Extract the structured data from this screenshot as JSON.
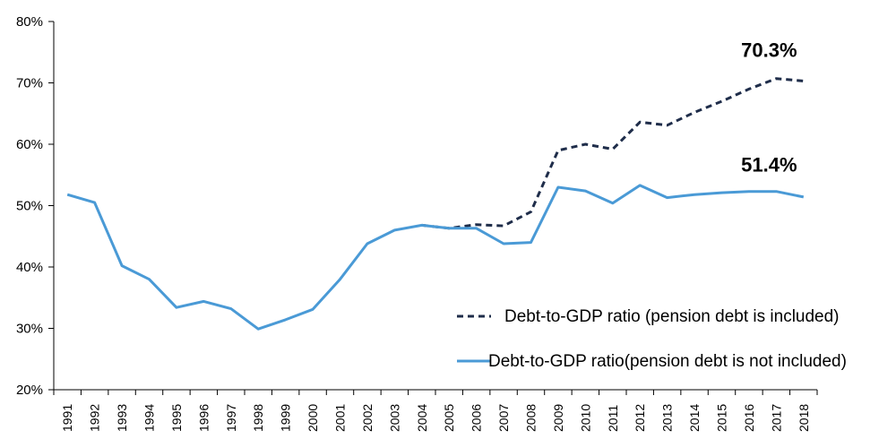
{
  "chart_data": {
    "type": "line",
    "title": "",
    "xlabel": "",
    "ylabel": "",
    "ylim": [
      0.2,
      0.8
    ],
    "y_ticks": [
      "20%",
      "30%",
      "40%",
      "50%",
      "60%",
      "70%",
      "80%"
    ],
    "y_tick_values": [
      0.2,
      0.3,
      0.4,
      0.5,
      0.6,
      0.7,
      0.8
    ],
    "grid": false,
    "legend_position": "bottom-right",
    "categories": [
      "1991",
      "1992",
      "1993",
      "1994",
      "1995",
      "1996",
      "1997",
      "1998",
      "1999",
      "2000",
      "2001",
      "2002",
      "2003",
      "2004",
      "2005",
      "2006",
      "2007",
      "2008",
      "2009",
      "2010",
      "2011",
      "2012",
      "2013",
      "2014",
      "2015",
      "2016",
      "2017",
      "2018"
    ],
    "series": [
      {
        "name": "Debt-to-GDP ratio (pension debt is included)",
        "style": "dashed",
        "color": "#1f2d4a",
        "values": [
          null,
          null,
          null,
          null,
          null,
          null,
          null,
          null,
          null,
          null,
          null,
          null,
          null,
          0.468,
          0.463,
          0.469,
          0.467,
          0.49,
          0.59,
          0.6,
          0.592,
          0.636,
          0.631,
          0.652,
          0.67,
          0.69,
          0.707,
          0.703
        ]
      },
      {
        "name": "Debt-to-GDP ratio(pension debt is not included)",
        "style": "solid",
        "color": "#4a9ad6",
        "values": [
          0.518,
          0.505,
          0.402,
          0.38,
          0.334,
          0.344,
          0.332,
          0.299,
          0.314,
          0.331,
          0.38,
          0.438,
          0.46,
          0.468,
          0.463,
          0.463,
          0.438,
          0.44,
          0.53,
          0.524,
          0.504,
          0.533,
          0.513,
          0.518,
          0.521,
          0.523,
          0.523,
          0.514
        ]
      }
    ],
    "annotations": [
      {
        "text": "70.3%",
        "series": 0,
        "category": "2017"
      },
      {
        "text": "51.4%",
        "series": 1,
        "category": "2017"
      }
    ]
  }
}
